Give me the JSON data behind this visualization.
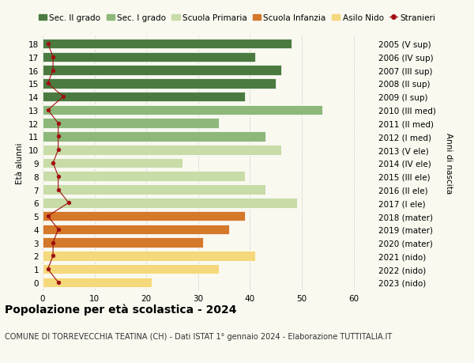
{
  "ages": [
    0,
    1,
    2,
    3,
    4,
    5,
    6,
    7,
    8,
    9,
    10,
    11,
    12,
    13,
    14,
    15,
    16,
    17,
    18
  ],
  "right_labels": [
    "2023 (nido)",
    "2022 (nido)",
    "2021 (nido)",
    "2020 (mater)",
    "2019 (mater)",
    "2018 (mater)",
    "2017 (I ele)",
    "2016 (II ele)",
    "2015 (III ele)",
    "2014 (IV ele)",
    "2013 (V ele)",
    "2012 (I med)",
    "2011 (II med)",
    "2010 (III med)",
    "2009 (I sup)",
    "2008 (II sup)",
    "2007 (III sup)",
    "2006 (IV sup)",
    "2005 (V sup)"
  ],
  "bar_values": [
    21,
    34,
    41,
    31,
    36,
    39,
    49,
    43,
    39,
    27,
    46,
    43,
    34,
    54,
    39,
    45,
    46,
    41,
    48
  ],
  "stranieri_values": [
    3,
    1,
    2,
    2,
    3,
    1,
    5,
    3,
    3,
    2,
    3,
    3,
    3,
    1,
    4,
    1,
    2,
    2,
    1
  ],
  "bar_colors": [
    "#f5d87c",
    "#f5d87c",
    "#f5d87c",
    "#d4782a",
    "#d4782a",
    "#d4782a",
    "#c8dca8",
    "#c8dca8",
    "#c8dca8",
    "#c8dca8",
    "#c8dca8",
    "#8db87a",
    "#8db87a",
    "#8db87a",
    "#4a7a40",
    "#4a7a40",
    "#4a7a40",
    "#4a7a40",
    "#4a7a40"
  ],
  "legend_labels": [
    "Sec. II grado",
    "Sec. I grado",
    "Scuola Primaria",
    "Scuola Infanzia",
    "Asilo Nido",
    "Stranieri"
  ],
  "legend_colors": [
    "#4a7a40",
    "#8db87a",
    "#c8dca8",
    "#d4782a",
    "#f5d87c",
    "#a01010"
  ],
  "ylabel": "Età alunni",
  "ylabel_right": "Anni di nascita",
  "title": "Popolazione per età scolastica - 2024",
  "subtitle": "COMUNE DI TORREVECCHIA TEATINA (CH) - Dati ISTAT 1° gennaio 2024 - Elaborazione TUTTITALIA.IT",
  "xlim": [
    0,
    64
  ],
  "stranieri_color": "#a01010",
  "background_color": "#f9f9f0",
  "grid_color": "#cccccc",
  "bar_height": 0.75,
  "title_fontsize": 10,
  "subtitle_fontsize": 7,
  "label_fontsize": 7.5,
  "tick_fontsize": 7.5,
  "legend_fontsize": 7.5
}
